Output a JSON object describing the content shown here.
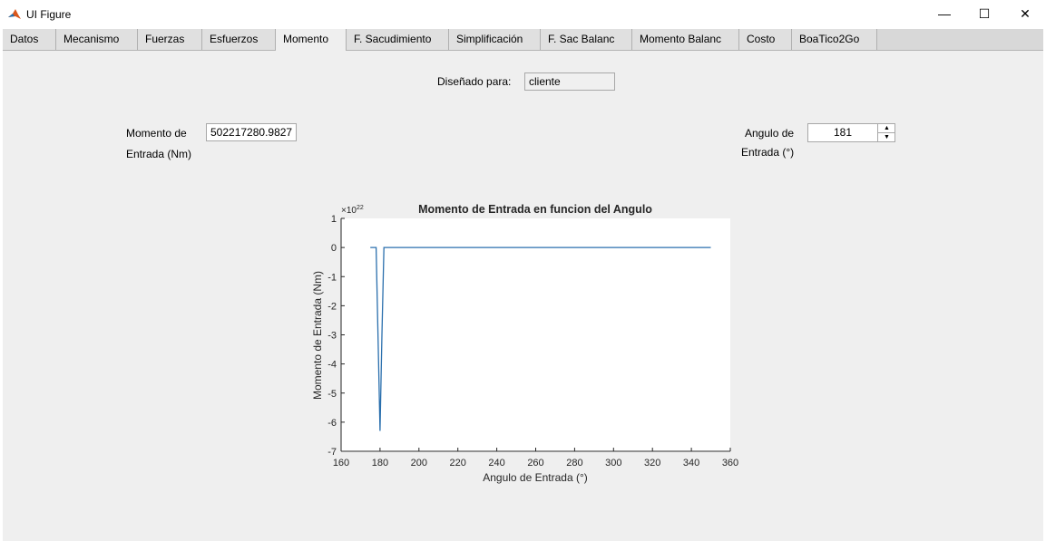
{
  "window": {
    "title": "UI Figure",
    "app_icon": "matlab-icon",
    "minimize_label": "—",
    "maximize_label": "☐",
    "close_label": "✕"
  },
  "tabs": [
    {
      "label": "Datos"
    },
    {
      "label": "Mecanismo"
    },
    {
      "label": "Fuerzas"
    },
    {
      "label": "Esfuerzos"
    },
    {
      "label": "Momento",
      "active": true
    },
    {
      "label": "F. Sacudimiento"
    },
    {
      "label": "Simplificación"
    },
    {
      "label": "F. Sac Balanc"
    },
    {
      "label": "Momento Balanc"
    },
    {
      "label": "Costo"
    },
    {
      "label": "BoaTico2Go"
    }
  ],
  "form": {
    "designed_for_label": "Diseñado para:",
    "designed_for_value": "cliente",
    "moment_label_line1": "Momento de",
    "moment_label_line2": "Entrada (Nm)",
    "moment_value": "502217280.9827",
    "angle_label_line1": "Angulo de",
    "angle_label_line2": "Entrada (°)",
    "angle_value": "181",
    "spinner_up_icon": "chevron-up-icon",
    "spinner_down_icon": "chevron-down-icon"
  },
  "chart_data": {
    "type": "line",
    "title": "Momento de Entrada en funcion del Angulo",
    "xlabel": "Angulo de Entrada (°)",
    "ylabel": "Momento de Entrada (Nm)",
    "y_exponent_label": "×10",
    "y_exponent": "22",
    "xlim": [
      160,
      360
    ],
    "ylim": [
      -7,
      1
    ],
    "xticks": [
      "160",
      "180",
      "200",
      "220",
      "240",
      "260",
      "280",
      "300",
      "320",
      "340",
      "360"
    ],
    "yticks": [
      "1",
      "0",
      "-1",
      "-2",
      "-3",
      "-4",
      "-5",
      "-6",
      "-7"
    ],
    "grid": false,
    "line_color": "#2a6fad",
    "series": [
      {
        "x": [
          175,
          178,
          179,
          180,
          181,
          182,
          350
        ],
        "y": [
          0,
          0,
          -3.2,
          -6.3,
          -3.0,
          0,
          0
        ]
      }
    ]
  }
}
